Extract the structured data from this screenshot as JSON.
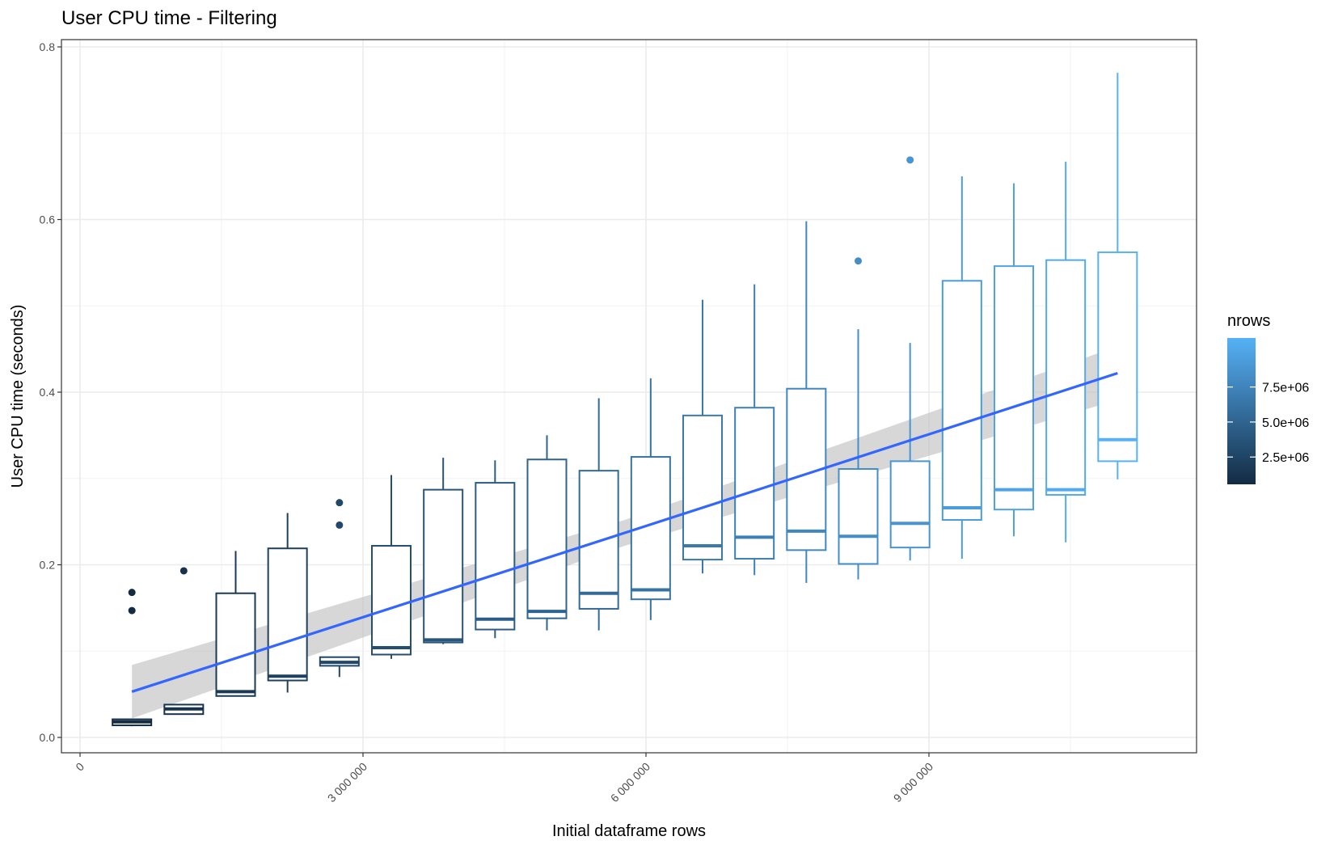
{
  "chart_data": {
    "type": "box",
    "title": "User CPU time - Filtering",
    "xlabel": "Initial dataframe rows",
    "ylabel": "User CPU time (seconds)",
    "xlim": [
      -200000,
      11900000
    ],
    "ylim": [
      -0.02,
      0.81
    ],
    "x_ticks": [
      0,
      3000000,
      6000000,
      9000000
    ],
    "x_tick_labels": [
      "0",
      "3 000 000",
      "6 000 000",
      "9 000 000"
    ],
    "y_ticks": [
      0.0,
      0.2,
      0.4,
      0.6,
      0.8
    ],
    "y_tick_labels": [
      "0.0",
      "0.2",
      "0.4",
      "0.6",
      "0.8"
    ],
    "grid": true,
    "legend": {
      "title": "nrows",
      "position": "right",
      "type": "colorbar",
      "range": [
        550000,
        11000000
      ],
      "breaks": [
        2500000,
        5000000,
        7500000
      ],
      "labels": [
        "2.5e+06",
        "5.0e+06",
        "7.5e+06"
      ],
      "color_low": "#132B43",
      "color_high": "#56B1F7"
    },
    "boxes": [
      {
        "x": 550000,
        "lower_whisker": 0.013,
        "q1": 0.014,
        "median": 0.018,
        "q3": 0.021,
        "upper_whisker": 0.021,
        "outliers": [
          0.147,
          0.168
        ]
      },
      {
        "x": 1100000,
        "lower_whisker": 0.027,
        "q1": 0.027,
        "median": 0.033,
        "q3": 0.038,
        "upper_whisker": 0.038,
        "outliers": [
          0.193
        ]
      },
      {
        "x": 1650000,
        "lower_whisker": 0.048,
        "q1": 0.048,
        "median": 0.053,
        "q3": 0.167,
        "upper_whisker": 0.216,
        "outliers": []
      },
      {
        "x": 2200000,
        "lower_whisker": 0.052,
        "q1": 0.066,
        "median": 0.071,
        "q3": 0.219,
        "upper_whisker": 0.26,
        "outliers": []
      },
      {
        "x": 2750000,
        "lower_whisker": 0.07,
        "q1": 0.083,
        "median": 0.087,
        "q3": 0.093,
        "upper_whisker": 0.093,
        "outliers": [
          0.246,
          0.272
        ]
      },
      {
        "x": 3300000,
        "lower_whisker": 0.091,
        "q1": 0.096,
        "median": 0.104,
        "q3": 0.222,
        "upper_whisker": 0.304,
        "outliers": []
      },
      {
        "x": 3850000,
        "lower_whisker": 0.108,
        "q1": 0.11,
        "median": 0.113,
        "q3": 0.287,
        "upper_whisker": 0.324,
        "outliers": []
      },
      {
        "x": 4400000,
        "lower_whisker": 0.115,
        "q1": 0.125,
        "median": 0.137,
        "q3": 0.295,
        "upper_whisker": 0.321,
        "outliers": []
      },
      {
        "x": 4950000,
        "lower_whisker": 0.124,
        "q1": 0.138,
        "median": 0.146,
        "q3": 0.322,
        "upper_whisker": 0.35,
        "outliers": []
      },
      {
        "x": 5500000,
        "lower_whisker": 0.124,
        "q1": 0.149,
        "median": 0.167,
        "q3": 0.309,
        "upper_whisker": 0.393,
        "outliers": []
      },
      {
        "x": 6050000,
        "lower_whisker": 0.136,
        "q1": 0.16,
        "median": 0.171,
        "q3": 0.325,
        "upper_whisker": 0.416,
        "outliers": []
      },
      {
        "x": 6600000,
        "lower_whisker": 0.19,
        "q1": 0.206,
        "median": 0.222,
        "q3": 0.373,
        "upper_whisker": 0.507,
        "outliers": []
      },
      {
        "x": 7150000,
        "lower_whisker": 0.188,
        "q1": 0.207,
        "median": 0.232,
        "q3": 0.382,
        "upper_whisker": 0.525,
        "outliers": []
      },
      {
        "x": 7700000,
        "lower_whisker": 0.179,
        "q1": 0.217,
        "median": 0.239,
        "q3": 0.404,
        "upper_whisker": 0.598,
        "outliers": []
      },
      {
        "x": 8250000,
        "lower_whisker": 0.183,
        "q1": 0.201,
        "median": 0.233,
        "q3": 0.311,
        "upper_whisker": 0.473,
        "outliers": [
          0.552
        ]
      },
      {
        "x": 8800000,
        "lower_whisker": 0.205,
        "q1": 0.22,
        "median": 0.248,
        "q3": 0.32,
        "upper_whisker": 0.457,
        "outliers": [
          0.669
        ]
      },
      {
        "x": 9350000,
        "lower_whisker": 0.207,
        "q1": 0.252,
        "median": 0.266,
        "q3": 0.529,
        "upper_whisker": 0.65,
        "outliers": []
      },
      {
        "x": 9900000,
        "lower_whisker": 0.233,
        "q1": 0.264,
        "median": 0.287,
        "q3": 0.546,
        "upper_whisker": 0.642,
        "outliers": []
      },
      {
        "x": 10450000,
        "lower_whisker": 0.226,
        "q1": 0.281,
        "median": 0.287,
        "q3": 0.553,
        "upper_whisker": 0.667,
        "outliers": []
      },
      {
        "x": 11000000,
        "lower_whisker": 0.299,
        "q1": 0.32,
        "median": 0.345,
        "q3": 0.562,
        "upper_whisker": 0.77,
        "outliers": []
      }
    ],
    "trend": {
      "method": "linear",
      "color": "#3366FF",
      "band_color": "#BEBEBE",
      "points": [
        {
          "x": 550000,
          "y": 0.053,
          "lower": 0.022,
          "upper": 0.084
        },
        {
          "x": 5775000,
          "y": 0.237,
          "lower": 0.222,
          "upper": 0.252
        },
        {
          "x": 11000000,
          "y": 0.422,
          "lower": 0.391,
          "upper": 0.453
        }
      ]
    }
  }
}
